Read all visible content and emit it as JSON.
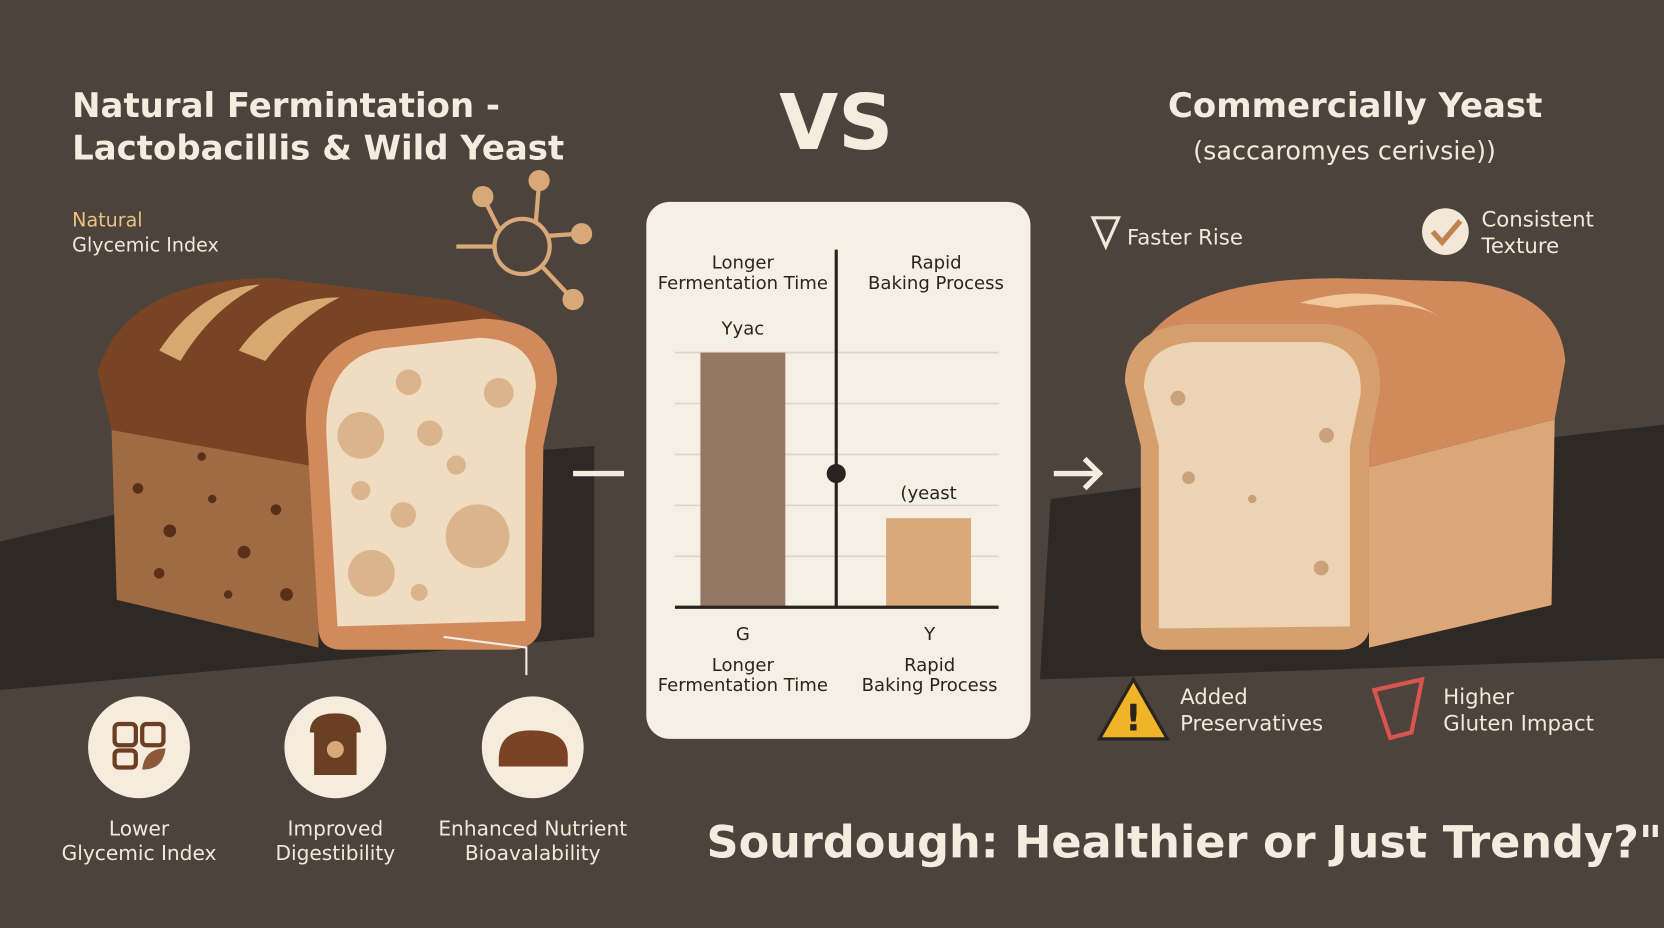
{
  "left": {
    "title": [
      "Natural Fermintation -",
      "Lactobacillis & Wild Yeast"
    ],
    "label": [
      "Natural",
      "Glycemic Index"
    ]
  },
  "vs": "VS",
  "right": {
    "title": "Commercially Yeast",
    "subtitle": "(saccaromyes cerivsie))",
    "features": [
      [
        "Faster Rise"
      ],
      [
        "Consistent",
        "Texture"
      ]
    ]
  },
  "panel": {
    "top_labels": [
      [
        "Longer",
        "Fermentation Time"
      ],
      [
        "Rapid",
        "Baking Process"
      ]
    ],
    "bar_labels": [
      "Yyac",
      "(yeast"
    ],
    "axis_marks": [
      "G",
      "Y"
    ],
    "bottom_labels": [
      [
        "Longer",
        "Fermentation Time"
      ],
      [
        "Rapid",
        "Baking Process"
      ]
    ]
  },
  "benefits": [
    [
      "Lower",
      "Glycemic Index"
    ],
    [
      "Improved",
      "Digestibility"
    ],
    [
      "Enhanced Nutrient",
      "Bioavalability"
    ]
  ],
  "warnings": [
    [
      "Added",
      "Preservatives"
    ],
    [
      "Higher",
      "Gluten Impact"
    ]
  ],
  "headline": "Sourdough: Healthier or Just Trendy?\""
}
